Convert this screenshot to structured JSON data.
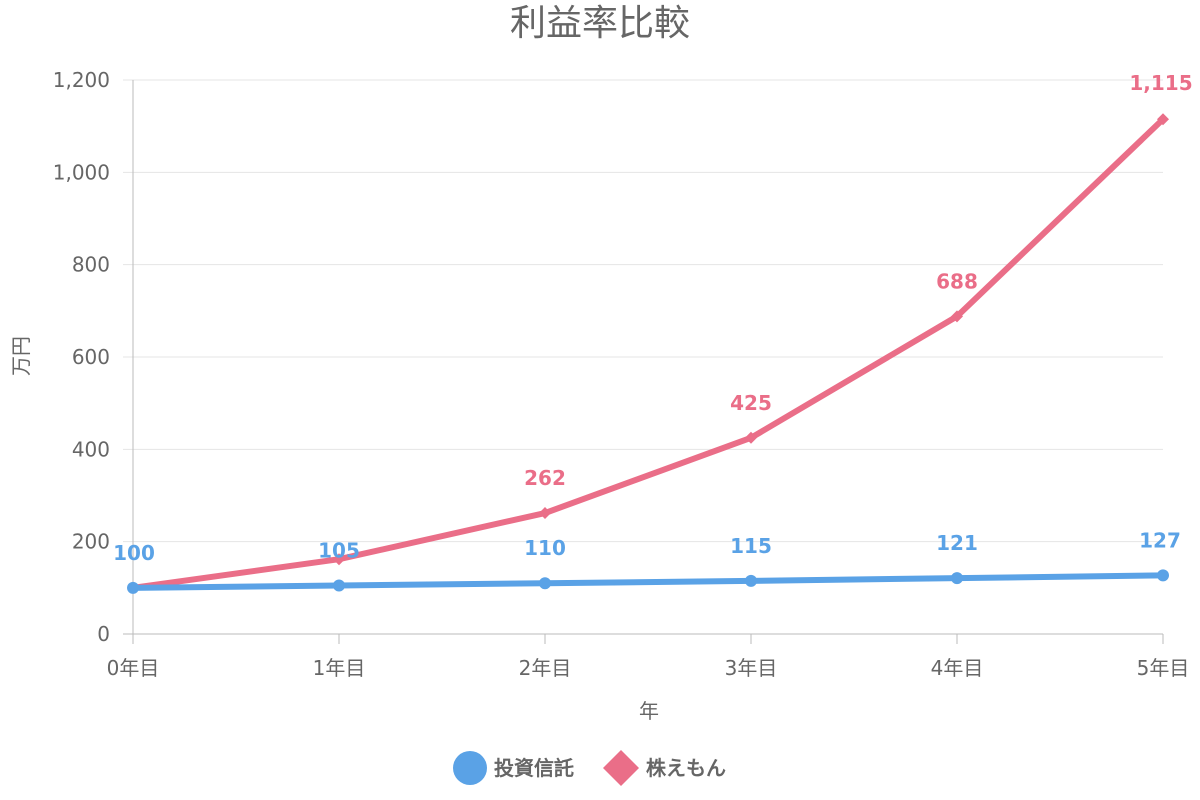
{
  "chart_data": {
    "type": "line",
    "title": "利益率比較",
    "xlabel": "年",
    "ylabel": "万円",
    "categories": [
      "0年目",
      "1年目",
      "2年目",
      "3年目",
      "4年目",
      "5年目"
    ],
    "ylim": [
      0,
      1200
    ],
    "yticks": [
      0,
      200,
      400,
      600,
      800,
      1000,
      1200
    ],
    "ytick_labels": [
      "0",
      "200",
      "400",
      "600",
      "800",
      "1,000",
      "1,200"
    ],
    "grid": true,
    "legend_position": "bottom",
    "series": [
      {
        "name": "投資信託",
        "marker": "circle",
        "color": "#5aa2e6",
        "values": [
          100,
          105,
          110,
          115,
          121,
          127
        ],
        "labels": [
          "100",
          "105",
          "110",
          "115",
          "121",
          "127"
        ],
        "point_labels_shown": [
          true,
          true,
          true,
          true,
          true,
          true
        ]
      },
      {
        "name": "株えもん",
        "marker": "diamond",
        "color": "#ea6e88",
        "values": [
          100,
          162,
          262,
          425,
          688,
          1115
        ],
        "labels": [
          "100",
          "162",
          "262",
          "425",
          "688",
          "1,115"
        ],
        "point_labels_shown": [
          false,
          false,
          true,
          true,
          true,
          true
        ]
      }
    ]
  }
}
